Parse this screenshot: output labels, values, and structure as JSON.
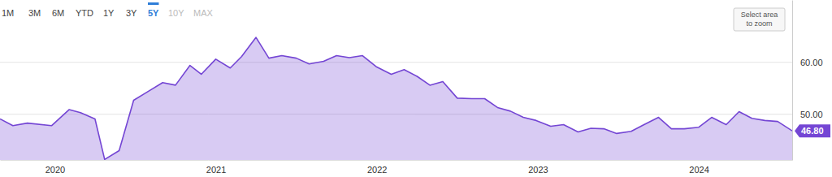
{
  "chart_data": {
    "type": "area",
    "x": [
      2019.66,
      2019.74,
      2019.83,
      2019.98,
      2020.09,
      2020.16,
      2020.25,
      2020.31,
      2020.4,
      2020.49,
      2020.58,
      2020.67,
      2020.75,
      2020.84,
      2020.91,
      2021.0,
      2021.09,
      2021.16,
      2021.25,
      2021.33,
      2021.41,
      2021.5,
      2021.58,
      2021.67,
      2021.75,
      2021.83,
      2021.91,
      2022.0,
      2022.09,
      2022.17,
      2022.25,
      2022.33,
      2022.41,
      2022.5,
      2022.59,
      2022.67,
      2022.75,
      2022.83,
      2022.91,
      2022.99,
      2023.08,
      2023.16,
      2023.25,
      2023.33,
      2023.41,
      2023.49,
      2023.58,
      2023.66,
      2023.75,
      2023.83,
      2023.91,
      2024.0,
      2024.08,
      2024.17,
      2024.25,
      2024.33,
      2024.41,
      2024.49,
      2024.58
    ],
    "values": [
      49.1,
      47.8,
      48.3,
      47.8,
      50.9,
      50.3,
      49.1,
      41.3,
      43.0,
      52.7,
      54.4,
      56.1,
      55.6,
      59.4,
      57.7,
      60.6,
      58.9,
      61.1,
      64.8,
      60.8,
      61.3,
      60.8,
      59.7,
      60.2,
      61.3,
      60.9,
      61.3,
      59.1,
      57.7,
      58.6,
      57.3,
      55.6,
      56.3,
      53.1,
      53.0,
      53.0,
      51.3,
      50.6,
      49.4,
      48.8,
      47.7,
      48.0,
      46.6,
      47.3,
      47.2,
      46.3,
      46.7,
      48.0,
      49.4,
      47.2,
      47.2,
      47.5,
      49.4,
      48.0,
      50.5,
      49.2,
      48.8,
      48.6,
      46.8
    ],
    "color": "#7446d4",
    "xlim": [
      2019.66,
      2024.58
    ],
    "xticks": [
      2020,
      2021,
      2022,
      2023,
      2024
    ],
    "ylim": [
      41.2,
      72
    ],
    "yticks": [
      {
        "value": 50,
        "label": "50.00"
      },
      {
        "value": 60,
        "label": "60.00"
      }
    ],
    "grid": true,
    "annotations": [
      {
        "x": 2024.58,
        "y": 46.8,
        "text": "46.80"
      }
    ]
  },
  "toolbar": {
    "ranges": [
      "1M",
      "3M",
      "6M",
      "YTD",
      "1Y",
      "3Y",
      "5Y",
      "10Y",
      "MAX"
    ],
    "active": "5Y",
    "disabled": [
      "10Y",
      "MAX"
    ]
  },
  "zoom_hint": [
    "Select area",
    "to zoom"
  ]
}
